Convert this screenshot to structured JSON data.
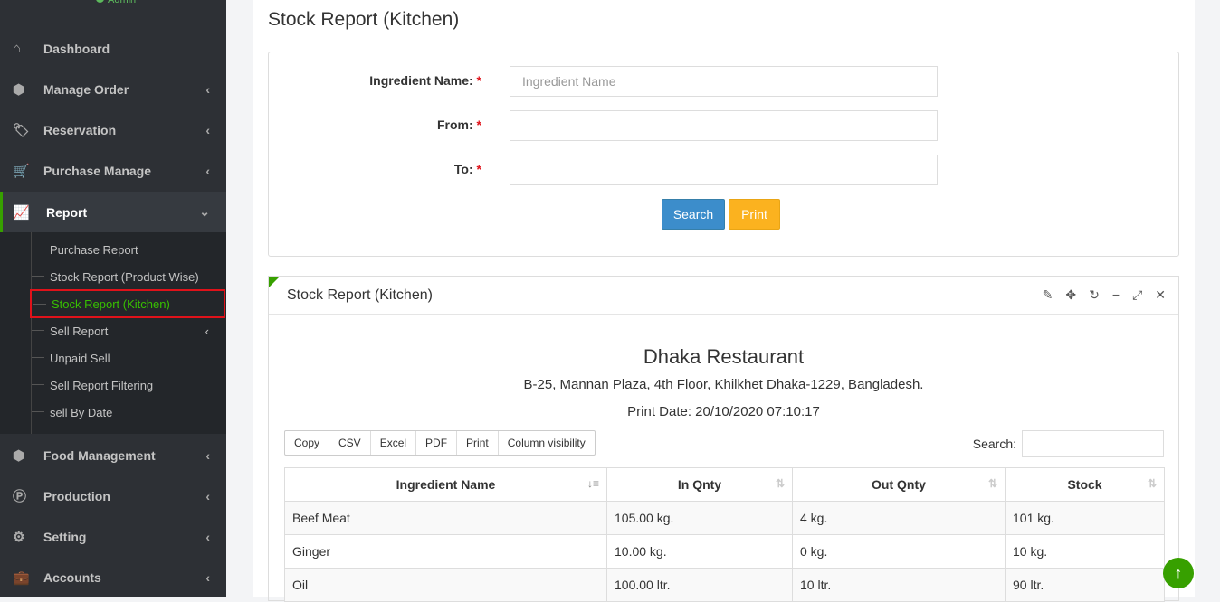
{
  "user": {
    "role": "Admin"
  },
  "sidebar": {
    "items": [
      {
        "label": "Dashboard",
        "icon": "home-icon"
      },
      {
        "label": "Manage Order",
        "icon": "cube-icon"
      },
      {
        "label": "Reservation",
        "icon": "tags-icon"
      },
      {
        "label": "Purchase Manage",
        "icon": "cart-icon"
      },
      {
        "label": "Report",
        "icon": "line-chart-icon"
      },
      {
        "label": "Food Management",
        "icon": "cube-icon"
      },
      {
        "label": "Production",
        "icon": "product-icon"
      },
      {
        "label": "Setting",
        "icon": "gear-icon"
      },
      {
        "label": "Accounts",
        "icon": "briefcase-icon"
      }
    ],
    "report_sub": [
      "Purchase Report",
      "Stock Report (Product Wise)",
      "Stock Report (Kitchen)",
      "Sell Report",
      "Unpaid Sell",
      "Sell Report Filtering",
      "sell By Date"
    ]
  },
  "page": {
    "title": "Stock Report (Kitchen)"
  },
  "form": {
    "ingredient_label": "Ingredient Name:",
    "ingredient_placeholder": "Ingredient Name",
    "from_label": "From:",
    "to_label": "To:",
    "required": "*",
    "search": "Search",
    "print": "Print"
  },
  "panel": {
    "title": "Stock Report (Kitchen)",
    "restaurant": "Dhaka Restaurant",
    "address": "B-25, Mannan Plaza, 4th Floor, Khilkhet Dhaka-1229, Bangladesh.",
    "print_date": "Print Date: 20/10/2020 07:10:17",
    "buttons": [
      "Copy",
      "CSV",
      "Excel",
      "PDF",
      "Print",
      "Column visibility"
    ],
    "search_label": "Search:",
    "columns": [
      "Ingredient Name",
      "In Qnty",
      "Out Qnty",
      "Stock"
    ],
    "rows": [
      [
        "Beef Meat",
        "105.00 kg.",
        "4 kg.",
        "101 kg."
      ],
      [
        "Ginger",
        "10.00 kg.",
        "0 kg.",
        "10 kg."
      ],
      [
        "Oil",
        "100.00 ltr.",
        "10 ltr.",
        "90 ltr."
      ]
    ]
  },
  "colors": {
    "accent": "#37a000",
    "primary": "#3c8dcb",
    "warning": "#fbb21f"
  }
}
